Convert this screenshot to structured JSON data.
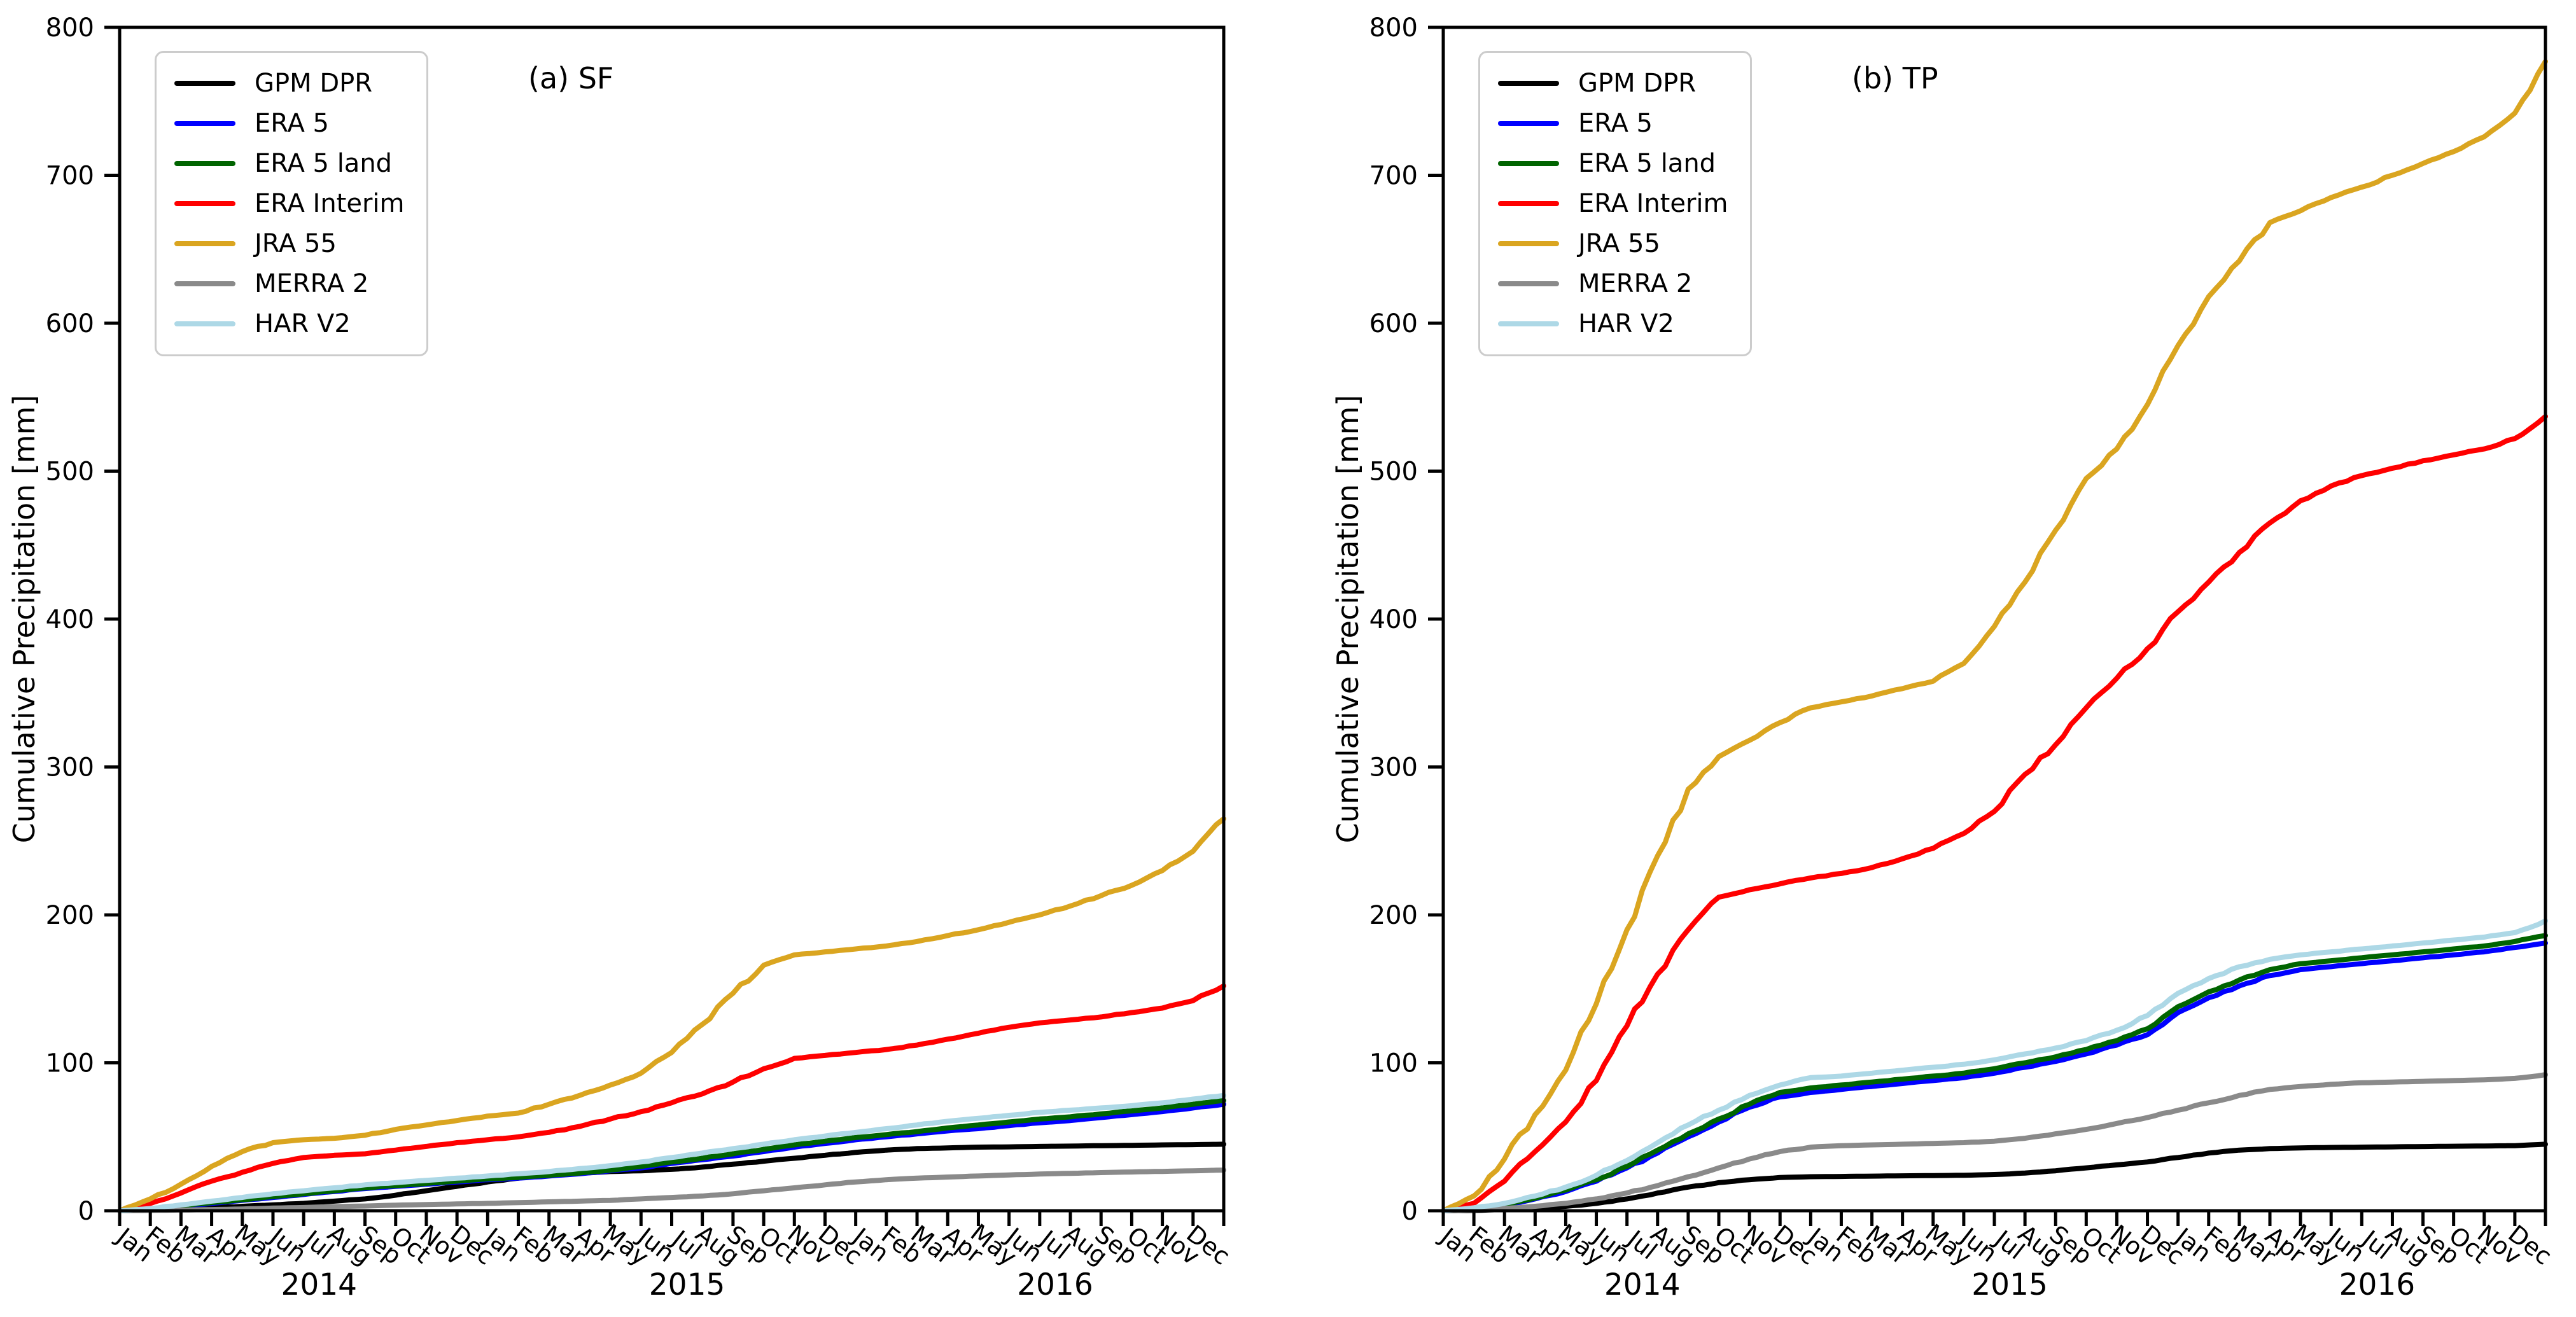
{
  "figure": {
    "ylabel": "Cumulative Precipitation [mm]",
    "background": "#ffffff",
    "axis_color": "#000000",
    "legend_border_color": "#cccccc"
  },
  "chart_data": [
    {
      "type": "line",
      "title": "(a) SF",
      "ylabel": "Cumulative Precipitation [mm]",
      "ylim": [
        0,
        800
      ],
      "yticks": [
        0,
        100,
        200,
        300,
        400,
        500,
        600,
        700,
        800
      ],
      "months": [
        "Jan",
        "Feb",
        "Mar",
        "Apr",
        "May",
        "Jun",
        "Jul",
        "Aug",
        "Sep",
        "Oct",
        "Nov",
        "Dec"
      ],
      "years": [
        "2014",
        "2015",
        "2016"
      ],
      "grid": false,
      "legend_position": "upper left",
      "series": [
        {
          "name": "GPM DPR",
          "color": "#000000",
          "values": [
            0.5,
            1,
            2,
            3,
            4,
            5,
            6.5,
            8,
            10.5,
            13.5,
            16.5,
            19.5,
            22,
            24,
            25.5,
            26.5,
            27,
            28,
            29.5,
            31.5,
            33.5,
            35.5,
            37.5,
            39.5,
            41,
            42,
            42.5,
            43,
            43.2,
            43.5,
            43.7,
            44,
            44.2,
            44.5,
            44.7,
            45
          ]
        },
        {
          "name": "ERA 5",
          "color": "#0000ff",
          "values": [
            1,
            3,
            5,
            7,
            9,
            11,
            13,
            15,
            16.5,
            18,
            19.5,
            21,
            22,
            23.5,
            25,
            27,
            29,
            32,
            34.5,
            37,
            40,
            43,
            45.5,
            48,
            50,
            52,
            54,
            55.5,
            57.5,
            59.5,
            61,
            63,
            65,
            67,
            69.5,
            72
          ]
        },
        {
          "name": "ERA 5 land",
          "color": "#006400",
          "values": [
            1.2,
            3.2,
            5.5,
            7.5,
            9.5,
            11.5,
            13.5,
            15.5,
            17,
            18.5,
            20,
            21.5,
            22.5,
            24,
            25.5,
            27.5,
            30,
            33,
            35.5,
            38.5,
            41.5,
            44.5,
            47,
            49.5,
            51.5,
            53.5,
            56,
            58,
            60,
            62,
            63.5,
            65.5,
            67.5,
            69.5,
            72,
            74.5
          ]
        },
        {
          "name": "ERA Interim",
          "color": "#ff0000",
          "values": [
            5,
            12,
            20,
            26,
            32,
            36,
            37.5,
            38.5,
            41,
            43.5,
            46,
            48,
            50,
            53,
            57,
            62,
            67,
            73,
            79,
            87,
            96,
            103,
            105,
            107,
            109,
            112,
            116,
            120,
            124,
            127,
            129,
            131,
            134,
            137,
            142,
            152
          ]
        },
        {
          "name": "JRA 55",
          "color": "#daa520",
          "values": [
            8,
            18,
            30,
            40,
            46,
            48,
            49,
            51,
            55,
            58,
            61,
            64,
            66,
            72,
            78,
            85,
            93,
            107,
            126,
            147,
            166,
            173,
            175,
            177,
            179,
            182,
            186,
            190,
            195,
            200,
            206,
            213,
            220,
            230,
            243,
            265
          ]
        },
        {
          "name": "MERRA 2",
          "color": "#8a8a8a",
          "values": [
            0.2,
            0.5,
            0.8,
            1.2,
            1.8,
            2.2,
            2.8,
            3.2,
            3.8,
            4.2,
            4.6,
            5,
            5.5,
            6,
            6.5,
            7,
            8,
            9,
            10,
            11.5,
            13.5,
            15.5,
            17.5,
            19.5,
            21,
            22,
            22.8,
            23.5,
            24.2,
            24.8,
            25.3,
            25.8,
            26.2,
            26.6,
            27,
            27.5
          ]
        },
        {
          "name": "HAR V2",
          "color": "#add8e6",
          "values": [
            1.5,
            4,
            6.5,
            9,
            11.5,
            13.5,
            15.5,
            17.5,
            19,
            20.5,
            22,
            23.5,
            25,
            26.5,
            28.5,
            30.5,
            33,
            36,
            39,
            42,
            45,
            48,
            50.5,
            53,
            55.5,
            58,
            60.5,
            62.5,
            64.5,
            66.5,
            68,
            69.5,
            71,
            73,
            75.5,
            78
          ]
        }
      ]
    },
    {
      "type": "line",
      "title": "(b) TP",
      "ylabel": "Cumulative Precipitation [mm]",
      "ylim": [
        0,
        800
      ],
      "yticks": [
        0,
        100,
        200,
        300,
        400,
        500,
        600,
        700,
        800
      ],
      "months": [
        "Jan",
        "Feb",
        "Mar",
        "Apr",
        "May",
        "Jun",
        "Jul",
        "Aug",
        "Sep",
        "Oct",
        "Nov",
        "Dec"
      ],
      "years": [
        "2014",
        "2015",
        "2016"
      ],
      "grid": false,
      "legend_position": "upper left",
      "series": [
        {
          "name": "GPM DPR",
          "color": "#000000",
          "values": [
            0.2,
            0.8,
            1.5,
            3,
            5,
            8,
            12,
            16,
            19,
            21,
            22.5,
            23,
            23.2,
            23.4,
            23.6,
            23.8,
            24,
            24.5,
            25.5,
            27,
            29,
            31,
            33,
            36,
            39,
            41,
            42,
            42.5,
            42.8,
            43,
            43.2,
            43.4,
            43.6,
            43.8,
            44,
            45
          ]
        },
        {
          "name": "ERA 5",
          "color": "#0000ff",
          "values": [
            1,
            3.5,
            8,
            13,
            20,
            29,
            39,
            50,
            60,
            70,
            77,
            80,
            82,
            84,
            86,
            88,
            90,
            93,
            97,
            101,
            106,
            112,
            119,
            134,
            144,
            152,
            159,
            163,
            165,
            167,
            169,
            171,
            173,
            175,
            178,
            181
          ]
        },
        {
          "name": "ERA 5 land",
          "color": "#006400",
          "values": [
            1.5,
            4,
            8.5,
            14,
            21,
            30,
            41,
            52,
            62,
            72,
            80,
            83,
            85,
            87,
            89,
            91,
            93,
            96,
            100,
            104,
            109,
            115,
            123,
            138,
            148,
            156,
            163,
            167,
            169,
            171,
            173,
            175,
            177,
            179,
            182,
            186
          ]
        },
        {
          "name": "ERA Interim",
          "color": "#ff0000",
          "values": [
            5,
            20,
            40,
            60,
            88,
            125,
            160,
            190,
            212,
            217,
            221,
            225,
            228,
            232,
            238,
            245,
            255,
            270,
            295,
            315,
            340,
            360,
            380,
            405,
            425,
            445,
            465,
            480,
            490,
            497,
            502,
            507,
            511,
            515,
            522,
            537
          ]
        },
        {
          "name": "JRA 55",
          "color": "#daa520",
          "values": [
            10,
            35,
            65,
            95,
            140,
            190,
            240,
            285,
            307,
            318,
            330,
            340,
            344,
            348,
            353,
            358,
            370,
            395,
            425,
            460,
            495,
            515,
            545,
            585,
            618,
            642,
            668,
            676,
            685,
            692,
            700,
            708,
            716,
            726,
            742,
            777
          ]
        },
        {
          "name": "MERRA 2",
          "color": "#8a8a8a",
          "values": [
            0.5,
            1.5,
            3,
            5,
            8,
            12,
            17,
            23,
            29,
            35,
            40,
            43,
            44,
            44.5,
            45,
            45.5,
            46,
            47,
            49,
            52,
            55,
            59,
            63,
            68,
            73,
            78,
            82,
            84,
            85.5,
            86.5,
            87,
            87.5,
            88,
            88.5,
            89.5,
            92
          ]
        },
        {
          "name": "HAR V2",
          "color": "#add8e6",
          "values": [
            2,
            5,
            10,
            16,
            24,
            34,
            46,
            58,
            68,
            78,
            85,
            90,
            91,
            93,
            95,
            97,
            99,
            102,
            106,
            110,
            115,
            122,
            132,
            147,
            157,
            165,
            170,
            173,
            175,
            177,
            179,
            181,
            183,
            185,
            188,
            196
          ]
        }
      ]
    }
  ]
}
